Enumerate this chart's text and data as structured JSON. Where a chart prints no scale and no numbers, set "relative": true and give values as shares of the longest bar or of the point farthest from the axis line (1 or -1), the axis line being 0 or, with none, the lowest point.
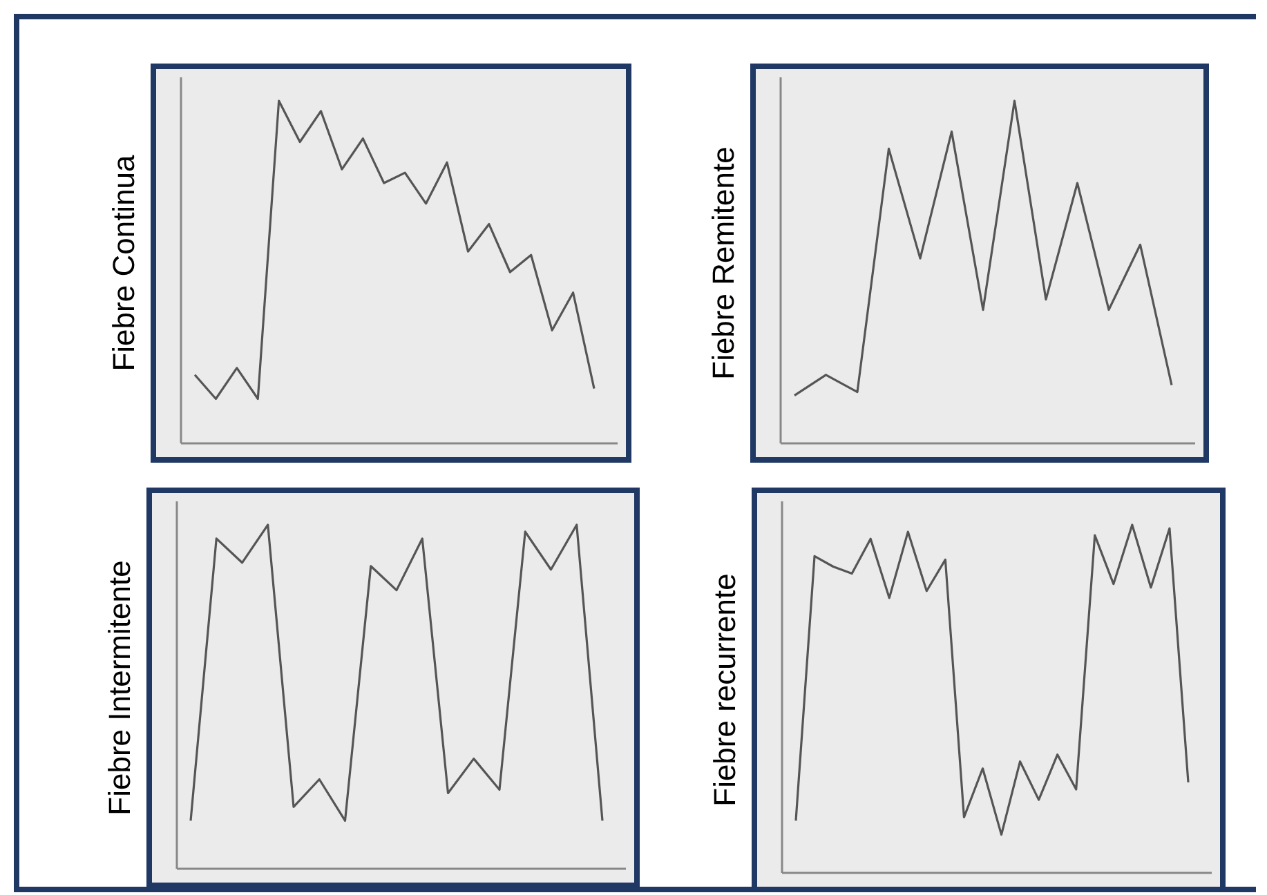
{
  "chart_data": [
    {
      "type": "line",
      "ylabel": "Fiebre Continua",
      "relative": true,
      "color": "#555555",
      "categories": [
        null,
        null,
        null,
        null,
        null,
        null,
        null,
        null,
        null,
        null,
        null,
        null,
        null,
        null,
        null,
        null,
        null,
        null,
        null,
        null
      ],
      "values": [
        0.2,
        0.13,
        0.22,
        0.13,
        1,
        0.88,
        0.97,
        0.8,
        0.89,
        0.76,
        0.79,
        0.7,
        0.82,
        0.56,
        0.64,
        0.5,
        0.55,
        0.33,
        0.44,
        0.16
      ]
    },
    {
      "type": "line",
      "ylabel": "Fiebre Remitente",
      "relative": true,
      "color": "#555555",
      "categories": [
        null,
        null,
        null,
        null,
        null,
        null,
        null,
        null,
        null,
        null,
        null,
        null,
        null
      ],
      "values": [
        0.14,
        0.2,
        0.15,
        0.86,
        0.54,
        0.91,
        0.39,
        1,
        0.42,
        0.76,
        0.39,
        0.58,
        0.17
      ]
    },
    {
      "type": "line",
      "ylabel": "Fiebre Intermitente",
      "relative": true,
      "color": "#555555",
      "categories": [
        null,
        null,
        null,
        null,
        null,
        null,
        null,
        null,
        null,
        null,
        null,
        null,
        null,
        null,
        null,
        null,
        null
      ],
      "values": [
        0.14,
        0.96,
        0.89,
        1,
        0.18,
        0.26,
        0.14,
        0.88,
        0.81,
        0.96,
        0.22,
        0.32,
        0.23,
        0.98,
        0.87,
        1,
        0.14
      ]
    },
    {
      "type": "line",
      "ylabel": "Fiebre recurrente",
      "relative": true,
      "color": "#555555",
      "categories": [
        null,
        null,
        null,
        null,
        null,
        null,
        null,
        null,
        null,
        null,
        null,
        null,
        null,
        null,
        null,
        null,
        null,
        null,
        null,
        null,
        null,
        null
      ],
      "values": [
        0.15,
        0.91,
        0.88,
        0.86,
        0.96,
        0.79,
        0.98,
        0.81,
        0.9,
        0.16,
        0.3,
        0.11,
        0.32,
        0.21,
        0.34,
        0.24,
        0.97,
        0.83,
        1,
        0.82,
        0.99,
        0.26
      ]
    }
  ]
}
